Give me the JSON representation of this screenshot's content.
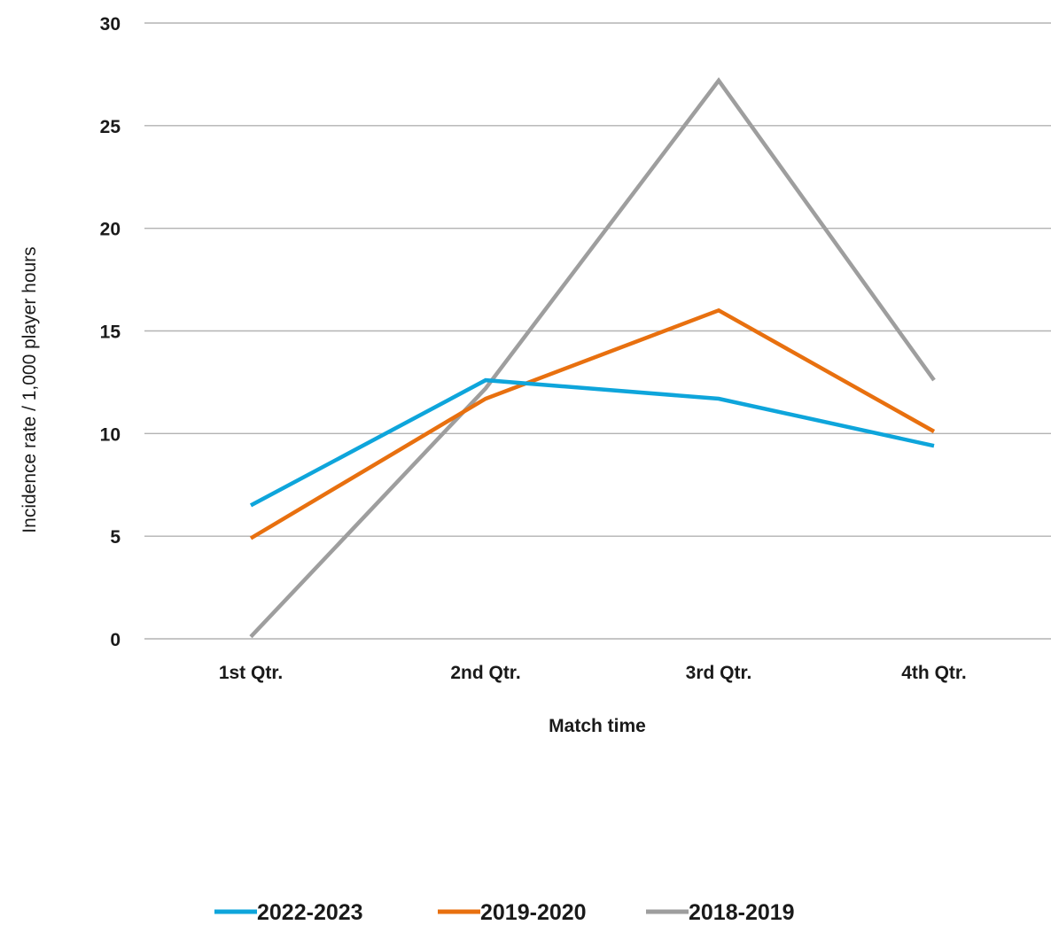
{
  "chart_data": {
    "type": "line",
    "title": "",
    "xlabel": "Match time",
    "ylabel": "Incidence rate / 1,000 player hours",
    "categories": [
      "1st Qtr.",
      "2nd Qtr.",
      "3rd Qtr.",
      "4th Qtr."
    ],
    "ylim": [
      0,
      30
    ],
    "yticks": [
      "0",
      "5",
      "10",
      "15",
      "20",
      "25",
      "30"
    ],
    "grid": true,
    "legend_position": "bottom",
    "series": [
      {
        "name": "2022-2023",
        "color": "#0ea5db",
        "values": [
          6.5,
          12.6,
          11.7,
          9.4
        ]
      },
      {
        "name": "2019-2020",
        "color": "#e8700f",
        "values": [
          4.9,
          11.7,
          16.0,
          10.1
        ]
      },
      {
        "name": "2018-2019",
        "color": "#9e9e9e",
        "values": [
          0.1,
          12.2,
          27.2,
          12.6
        ]
      }
    ]
  }
}
